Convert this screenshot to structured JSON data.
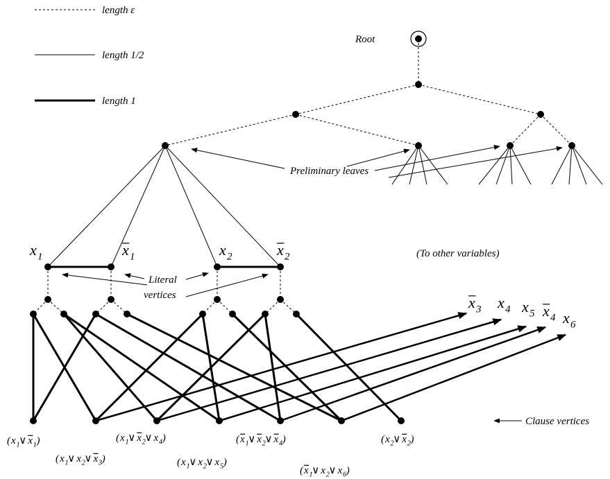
{
  "legend": {
    "dashed": "length ε",
    "thin": "length 1/2",
    "thick": "length 1"
  },
  "labels": {
    "root": "Root",
    "preliminary_leaves": "Preliminary leaves",
    "literal_vertices_line1": "Literal",
    "literal_vertices_line2": "vertices",
    "other_variables": "(To other variables)",
    "clause_vertices": "Clause vertices"
  },
  "literals": [
    {
      "base": "x",
      "sub": "1",
      "negated": false
    },
    {
      "base": "x",
      "sub": "1",
      "negated": true
    },
    {
      "base": "x",
      "sub": "2",
      "negated": false
    },
    {
      "base": "x",
      "sub": "2",
      "negated": true
    }
  ],
  "targets": [
    {
      "base": "x",
      "sub": "3",
      "negated": true
    },
    {
      "base": "x",
      "sub": "4",
      "negated": false
    },
    {
      "base": "x",
      "sub": "5",
      "negated": false
    },
    {
      "base": "x",
      "sub": "4",
      "negated": true
    },
    {
      "base": "x",
      "sub": "6",
      "negated": false
    }
  ],
  "clauses": [
    {
      "terms": [
        {
          "v": "x",
          "s": "1",
          "n": false
        },
        {
          "v": "x",
          "s": "1",
          "n": true
        }
      ]
    },
    {
      "terms": [
        {
          "v": "x",
          "s": "1",
          "n": false
        },
        {
          "v": "x",
          "s": "2",
          "n": false
        },
        {
          "v": "x",
          "s": "3",
          "n": true
        }
      ]
    },
    {
      "terms": [
        {
          "v": "x",
          "s": "1",
          "n": false
        },
        {
          "v": "x",
          "s": "2",
          "n": true
        },
        {
          "v": "x",
          "s": "4",
          "n": false
        }
      ]
    },
    {
      "terms": [
        {
          "v": "x",
          "s": "1",
          "n": false
        },
        {
          "v": "x",
          "s": "2",
          "n": false
        },
        {
          "v": "x",
          "s": "5",
          "n": false
        }
      ]
    },
    {
      "terms": [
        {
          "v": "x",
          "s": "1",
          "n": true
        },
        {
          "v": "x",
          "s": "2",
          "n": true
        },
        {
          "v": "x",
          "s": "4",
          "n": true
        }
      ]
    },
    {
      "terms": [
        {
          "v": "x",
          "s": "1",
          "n": true
        },
        {
          "v": "x",
          "s": "2",
          "n": false
        },
        {
          "v": "x",
          "s": "6",
          "n": false
        }
      ]
    },
    {
      "terms": [
        {
          "v": "x",
          "s": "2",
          "n": false
        },
        {
          "v": "x",
          "s": "2",
          "n": true
        }
      ]
    }
  ]
}
